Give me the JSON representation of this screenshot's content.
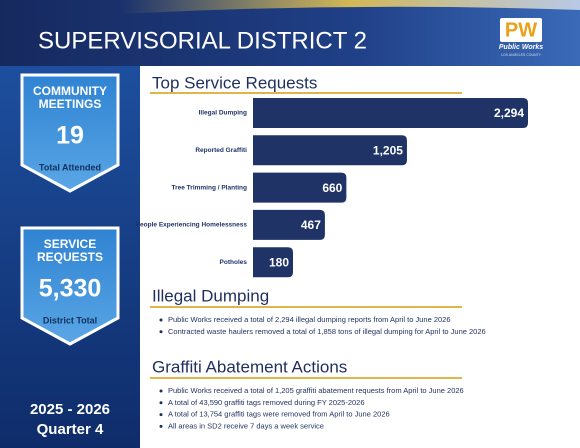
{
  "header": {
    "title": "SUPERVISORIAL DISTRICT 2",
    "logo": {
      "mark": "PW",
      "name": "Public Works",
      "subtitle": "LOS ANGELES COUNTY"
    }
  },
  "sidebar": {
    "cards": [
      {
        "title_lines": [
          "COMMUNITY",
          "MEETINGS"
        ],
        "value": "19",
        "caption": "Total Attended"
      },
      {
        "title_lines": [
          "SERVICE",
          "REQUESTS"
        ],
        "value": "5,330",
        "caption": "District Total"
      }
    ],
    "period": [
      "2025 - 2026",
      "Quarter 4"
    ]
  },
  "chart_data": {
    "type": "bar",
    "orientation": "horizontal",
    "title": "Top Service Requests",
    "categories": [
      "Illegal Dumping",
      "Reported Graffiti",
      "Tree Trimming / Planting",
      "People Experiencing Homelessness",
      "Potholes"
    ],
    "values": [
      2294,
      1205,
      660,
      467,
      180
    ],
    "value_labels": [
      "2,294",
      "1,205",
      "660",
      "467",
      "180"
    ],
    "color": "#1f3366"
  },
  "sections": [
    {
      "heading": "Illegal Dumping",
      "bullets": [
        "Public Works received a total of 2,294 illegal dumping reports from April to June 2026",
        "Contracted waste haulers removed a total of 1,858 tons of illegal dumping for April to June 2026"
      ]
    },
    {
      "heading": "Graffiti Abatement Actions",
      "bullets": [
        "Public Works received a total of 1,205 graffiti abatement requests from April to June 2026",
        "A total of 43,590 graffiti tags removed during FY 2025-2026",
        "A total of 13,754 graffiti tags were removed from April to June 2026",
        "All areas in SD2 receive 7 days a week service"
      ]
    }
  ]
}
